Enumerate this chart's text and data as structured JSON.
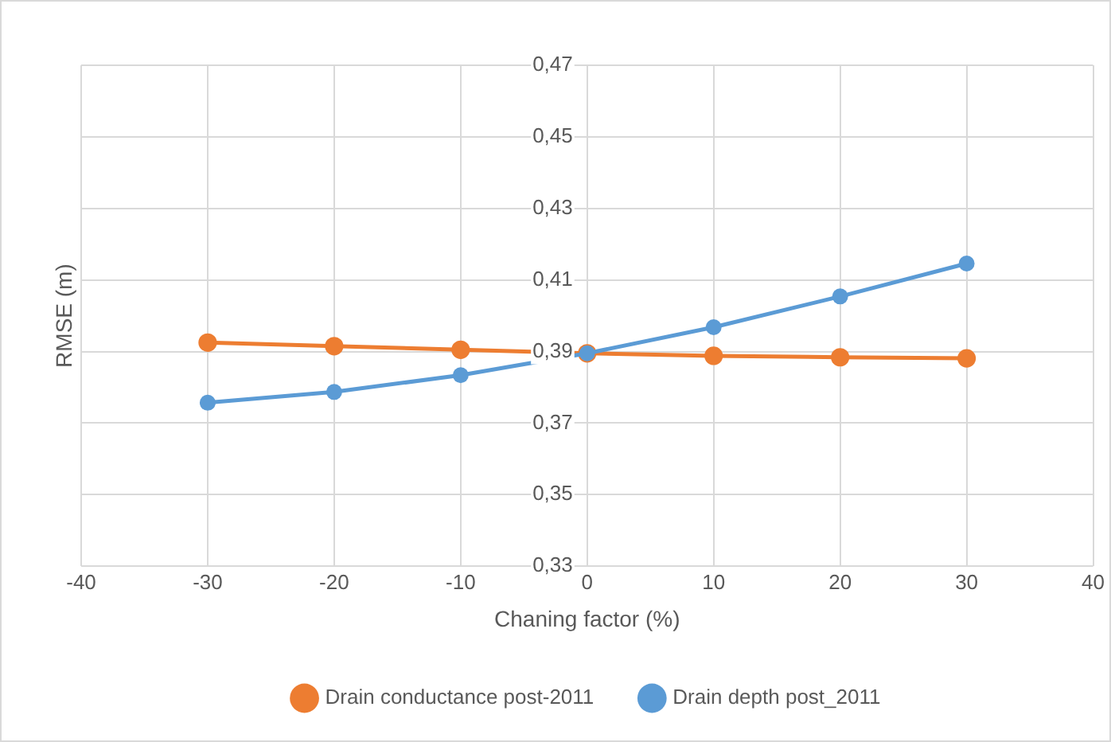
{
  "chart_data": {
    "type": "line",
    "xlabel": "Chaning factor (%)",
    "ylabel": "RMSE (m)",
    "x": [
      -30,
      -20,
      -10,
      0,
      10,
      20,
      30
    ],
    "series": [
      {
        "name": "Drain conductance post-2011",
        "color": "#ed7d31",
        "values": [
          0.3925,
          0.3915,
          0.3905,
          0.3895,
          0.3888,
          0.3884,
          0.3881
        ]
      },
      {
        "name": "Drain depth post_2011",
        "color": "#5b9bd5",
        "values": [
          0.3757,
          0.3787,
          0.3834,
          0.3895,
          0.3968,
          0.4054,
          0.4146
        ]
      }
    ],
    "xlim": [
      -40,
      40
    ],
    "xticks": [
      -40,
      -30,
      -20,
      -10,
      0,
      10,
      20,
      30,
      40
    ],
    "ylim": [
      0.33,
      0.47
    ],
    "yticks": [
      {
        "value": 0.33,
        "label": "0,33"
      },
      {
        "value": 0.35,
        "label": "0,35"
      },
      {
        "value": 0.37,
        "label": "0,37"
      },
      {
        "value": 0.39,
        "label": "0,39"
      },
      {
        "value": 0.41,
        "label": "0,41"
      },
      {
        "value": 0.43,
        "label": "0,43"
      },
      {
        "value": 0.45,
        "label": "0,45"
      },
      {
        "value": 0.47,
        "label": "0,47"
      }
    ],
    "grid": true,
    "legend": "bottom",
    "marker": "circle",
    "line_style": "solid"
  }
}
